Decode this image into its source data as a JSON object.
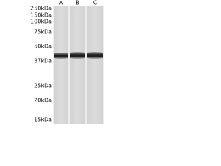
{
  "markers": [
    "250kDa",
    "150kDa",
    "100kDa",
    "75kDa",
    "50kDa",
    "37kDa",
    "25kDa",
    "20kDa",
    "15kDa"
  ],
  "lanes": [
    "A",
    "B",
    "C"
  ]
}
